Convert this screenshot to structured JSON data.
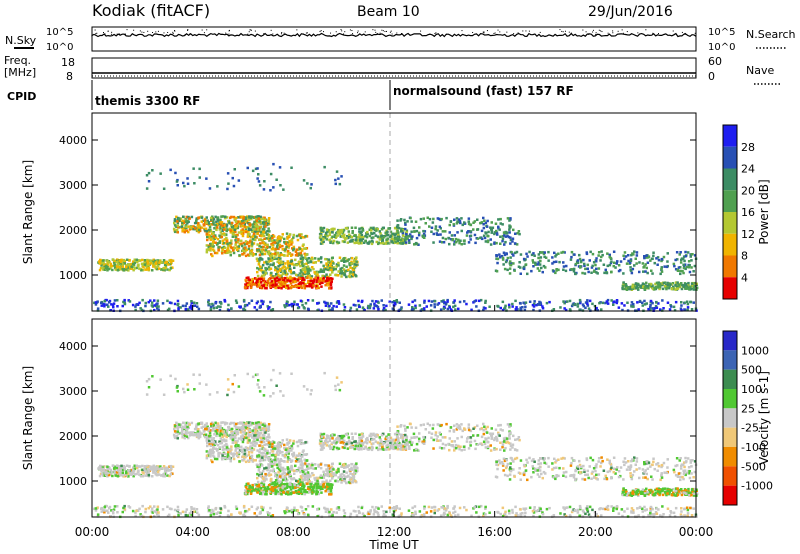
{
  "header": {
    "station": "Kodiak (fitACF)",
    "beam": "Beam 10",
    "date": "29/Jun/2016"
  },
  "top_panels": {
    "nsky_label": "N.Sky",
    "nsearch_label": "N.Search",
    "noise_ticks_left": [
      "10^5",
      "10^0"
    ],
    "noise_ticks_right": [
      "10^5",
      "10^0"
    ],
    "freq_label": "Freq.",
    "freq_unit": "[MHz]",
    "freq_ticks": [
      "18",
      "8"
    ],
    "nave_label": "Nave",
    "nave_ticks": [
      "60",
      "0"
    ],
    "cpid_label": "CPID",
    "cpid_modes": [
      "themis 3300 RF",
      "normalsound (fast) 157 RF"
    ]
  },
  "chart_data": [
    {
      "type": "heatmap",
      "name": "power",
      "ylabel": "Slant Range [km]",
      "ylim": [
        200,
        4600
      ],
      "yticks": [
        1000,
        2000,
        3000,
        4000
      ],
      "xlim": [
        0,
        24
      ],
      "colorbar": {
        "label": "Power [dB]",
        "ticks": [
          "28",
          "24",
          "20",
          "16",
          "12",
          "8",
          "4"
        ],
        "colors": [
          "#1e1ef0",
          "#2850b4",
          "#3c8c64",
          "#50a050",
          "#b4c832",
          "#f0b400",
          "#f07800",
          "#e60000"
        ]
      }
    },
    {
      "type": "heatmap",
      "name": "velocity",
      "ylabel": "Slant Range [km]",
      "ylim": [
        200,
        4600
      ],
      "yticks": [
        1000,
        2000,
        3000,
        4000
      ],
      "xlim": [
        0,
        24
      ],
      "xticks": [
        "00:00",
        "04:00",
        "08:00",
        "12:00",
        "16:00",
        "20:00",
        "00:00"
      ],
      "xlabel": "Time UT",
      "colorbar": {
        "label": "Velocity [m s-1]",
        "ticks": [
          "1000",
          "500",
          "100",
          "25",
          "-25",
          "-100",
          "-500",
          "-1000"
        ],
        "colors": [
          "#2828c8",
          "#3c64b4",
          "#3c8c50",
          "#50c832",
          "#c8c8c8",
          "#f0c878",
          "#f08c00",
          "#f05000",
          "#e60000"
        ]
      }
    }
  ]
}
